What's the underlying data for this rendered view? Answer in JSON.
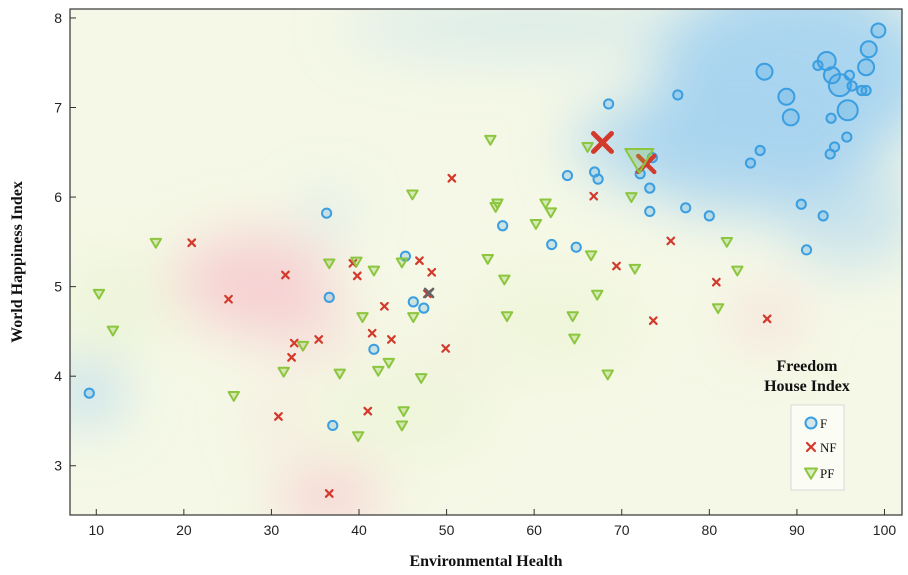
{
  "chart_data": {
    "type": "scatter",
    "xlabel": "Environmental Health",
    "ylabel": "World Happiness Index",
    "xlim": [
      7,
      102
    ],
    "ylim": [
      2.45,
      8.1
    ],
    "xticks": [
      10,
      20,
      30,
      40,
      50,
      60,
      70,
      80,
      90,
      100
    ],
    "yticks": [
      3,
      4,
      5,
      6,
      7,
      8
    ],
    "grid": false,
    "legend": {
      "title_line1": "Freedom",
      "title_line2": "House Index",
      "placement": "bottom-right",
      "entries": [
        "F",
        "NF",
        "PF"
      ]
    },
    "colors": {
      "F": "#3a9ee0",
      "NF": "#d33a2c",
      "PF": "#8cc63f",
      "bg_F": "#a8d4f0",
      "bg_NF": "#f7cfd2",
      "bg_PF": "#e8f3cf",
      "bg_base": "#f5f8e6"
    },
    "series": [
      {
        "name": "F",
        "points": [
          [
            9.2,
            3.81
          ],
          [
            36.3,
            5.82
          ],
          [
            36.6,
            4.88
          ],
          [
            37.0,
            3.45
          ],
          [
            41.7,
            4.3
          ],
          [
            45.3,
            5.34
          ],
          [
            46.2,
            4.83
          ],
          [
            47.4,
            4.76
          ],
          [
            56.4,
            5.68
          ],
          [
            62.0,
            5.47
          ],
          [
            64.8,
            5.44
          ],
          [
            63.8,
            6.24
          ],
          [
            66.9,
            6.28
          ],
          [
            67.3,
            6.2
          ],
          [
            68.5,
            7.04
          ],
          [
            72.1,
            6.26
          ],
          [
            73.2,
            6.1
          ],
          [
            73.5,
            6.44
          ],
          [
            73.2,
            5.84
          ],
          [
            76.4,
            7.14
          ],
          [
            77.3,
            5.88
          ],
          [
            80.0,
            5.79
          ],
          [
            84.7,
            6.38
          ],
          [
            85.8,
            6.52
          ],
          [
            86.3,
            7.4
          ],
          [
            88.8,
            7.12
          ],
          [
            89.3,
            6.89
          ],
          [
            90.5,
            5.92
          ],
          [
            91.1,
            5.41
          ],
          [
            93.0,
            5.79
          ],
          [
            92.4,
            7.47
          ],
          [
            93.4,
            7.52
          ],
          [
            94.0,
            7.36
          ],
          [
            93.9,
            6.88
          ],
          [
            93.8,
            6.48
          ],
          [
            94.3,
            6.56
          ],
          [
            94.9,
            7.25
          ],
          [
            95.8,
            6.97
          ],
          [
            95.7,
            6.67
          ],
          [
            96.0,
            7.36
          ],
          [
            96.3,
            7.24
          ],
          [
            97.4,
            7.19
          ],
          [
            97.9,
            7.45
          ],
          [
            98.2,
            7.65
          ],
          [
            97.9,
            7.19
          ],
          [
            99.3,
            7.86
          ]
        ]
      },
      {
        "name": "NF",
        "points": [
          [
            20.9,
            5.49
          ],
          [
            25.1,
            4.86
          ],
          [
            30.8,
            3.55
          ],
          [
            31.6,
            5.13
          ],
          [
            32.3,
            4.21
          ],
          [
            32.6,
            4.37
          ],
          [
            35.4,
            4.41
          ],
          [
            36.6,
            2.69
          ],
          [
            39.3,
            5.26
          ],
          [
            39.8,
            5.12
          ],
          [
            41.0,
            3.61
          ],
          [
            41.5,
            4.48
          ],
          [
            42.9,
            4.78
          ],
          [
            43.7,
            4.41
          ],
          [
            46.9,
            5.29
          ],
          [
            48.3,
            5.16
          ],
          [
            47.8,
            4.92
          ],
          [
            49.9,
            4.31
          ],
          [
            50.6,
            6.21
          ],
          [
            66.8,
            6.01
          ],
          [
            67.8,
            6.61
          ],
          [
            69.4,
            5.23
          ],
          [
            72.8,
            6.37
          ],
          [
            73.6,
            4.62
          ],
          [
            75.6,
            5.51
          ],
          [
            80.8,
            5.05
          ],
          [
            86.6,
            4.64
          ]
        ]
      },
      {
        "name": "PF",
        "points": [
          [
            10.3,
            4.92
          ],
          [
            11.9,
            4.51
          ],
          [
            16.8,
            5.49
          ],
          [
            25.7,
            3.78
          ],
          [
            31.4,
            4.05
          ],
          [
            33.6,
            4.34
          ],
          [
            36.6,
            5.26
          ],
          [
            37.8,
            4.03
          ],
          [
            39.7,
            5.28
          ],
          [
            39.9,
            3.33
          ],
          [
            40.4,
            4.66
          ],
          [
            41.7,
            5.18
          ],
          [
            42.2,
            4.06
          ],
          [
            43.4,
            4.15
          ],
          [
            44.9,
            5.27
          ],
          [
            44.9,
            3.45
          ],
          [
            45.1,
            3.61
          ],
          [
            46.1,
            6.03
          ],
          [
            46.2,
            4.66
          ],
          [
            47.1,
            3.98
          ],
          [
            54.7,
            5.31
          ],
          [
            55.0,
            6.64
          ],
          [
            55.6,
            5.89
          ],
          [
            55.8,
            5.93
          ],
          [
            56.6,
            5.08
          ],
          [
            56.9,
            4.67
          ],
          [
            60.2,
            5.7
          ],
          [
            61.3,
            5.93
          ],
          [
            61.9,
            5.83
          ],
          [
            64.4,
            4.67
          ],
          [
            64.6,
            4.42
          ],
          [
            66.1,
            6.56
          ],
          [
            66.5,
            5.35
          ],
          [
            67.2,
            4.91
          ],
          [
            68.4,
            4.02
          ],
          [
            71.1,
            6.0
          ],
          [
            71.5,
            5.2
          ],
          [
            72.0,
            6.42
          ],
          [
            82.0,
            5.5
          ],
          [
            83.2,
            5.18
          ],
          [
            81.0,
            4.76
          ]
        ]
      }
    ],
    "sizes": {
      "F": [
        [
          94.9,
          7.25,
          11
        ],
        [
          95.8,
          6.97,
          10
        ],
        [
          93.4,
          7.52,
          9
        ],
        [
          98.2,
          7.65,
          8
        ],
        [
          86.3,
          7.4,
          8
        ],
        [
          99.3,
          7.86,
          7
        ],
        [
          97.9,
          7.45,
          8
        ],
        [
          88.8,
          7.12,
          8
        ],
        [
          89.3,
          6.89,
          8
        ],
        [
          94.0,
          7.36,
          8
        ]
      ],
      "NF": [
        [
          67.8,
          6.61,
          9
        ],
        [
          72.8,
          6.37,
          8
        ]
      ],
      "PF": [
        [
          72.0,
          6.42,
          14
        ]
      ]
    },
    "cross_marker": [
      [
        48.0,
        4.93
      ]
    ]
  }
}
